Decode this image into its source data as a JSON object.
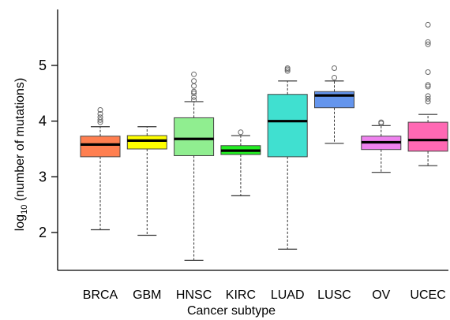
{
  "chart_data": {
    "type": "box",
    "xlabel": "Cancer subtype",
    "ylabel_main": "log",
    "ylabel_sub": "10",
    "ylabel_rest": " (number  of mutations)",
    "ylim": [
      1.4,
      6.0
    ],
    "yticks": [
      2,
      3,
      4,
      5
    ],
    "ytick_labels": [
      "2",
      "3",
      "4",
      "5"
    ],
    "grid": false,
    "categories": [
      "BRCA",
      "GBM",
      "HNSC",
      "KIRC",
      "LUAD",
      "LUSC",
      "OV",
      "UCEC"
    ],
    "boxes": [
      {
        "category": "BRCA",
        "color": "#ff7f50",
        "whisker_low": 2.05,
        "q1": 3.36,
        "median": 3.58,
        "q3": 3.73,
        "whisker_high": 3.9,
        "outliers": [
          3.98,
          4.02,
          4.07,
          4.13,
          4.2
        ]
      },
      {
        "category": "GBM",
        "color": "#ffff00",
        "whisker_low": 1.95,
        "q1": 3.5,
        "median": 3.65,
        "q3": 3.74,
        "whisker_high": 3.9,
        "outliers": []
      },
      {
        "category": "HNSC",
        "color": "#90ee90",
        "whisker_low": 1.5,
        "q1": 3.38,
        "median": 3.68,
        "q3": 4.06,
        "whisker_high": 4.35,
        "outliers": [
          4.38,
          4.43,
          4.5,
          4.53,
          4.63,
          4.72,
          4.84
        ]
      },
      {
        "category": "KIRC",
        "color": "#22ee22",
        "whisker_low": 2.66,
        "q1": 3.4,
        "median": 3.47,
        "q3": 3.56,
        "whisker_high": 3.74,
        "outliers": [
          3.8
        ]
      },
      {
        "category": "LUAD",
        "color": "#40e0d0",
        "whisker_low": 1.7,
        "q1": 3.36,
        "median": 4.0,
        "q3": 4.48,
        "whisker_high": 4.72,
        "outliers": [
          4.9,
          4.93,
          4.95
        ]
      },
      {
        "category": "LUSC",
        "color": "#6495ed",
        "whisker_low": 3.6,
        "q1": 4.24,
        "median": 4.46,
        "q3": 4.53,
        "whisker_high": 4.72,
        "outliers": [
          4.78,
          4.95
        ]
      },
      {
        "category": "OV",
        "color": "#ee82ee",
        "whisker_low": 3.08,
        "q1": 3.49,
        "median": 3.62,
        "q3": 3.73,
        "whisker_high": 3.92,
        "outliers": [
          3.96,
          3.98
        ]
      },
      {
        "category": "UCEC",
        "color": "#ff69b4",
        "whisker_low": 3.2,
        "q1": 3.46,
        "median": 3.66,
        "q3": 3.98,
        "whisker_high": 4.12,
        "outliers": [
          4.35,
          4.4,
          4.45,
          4.62,
          4.65,
          4.88,
          5.38,
          5.42,
          5.73
        ]
      }
    ]
  }
}
